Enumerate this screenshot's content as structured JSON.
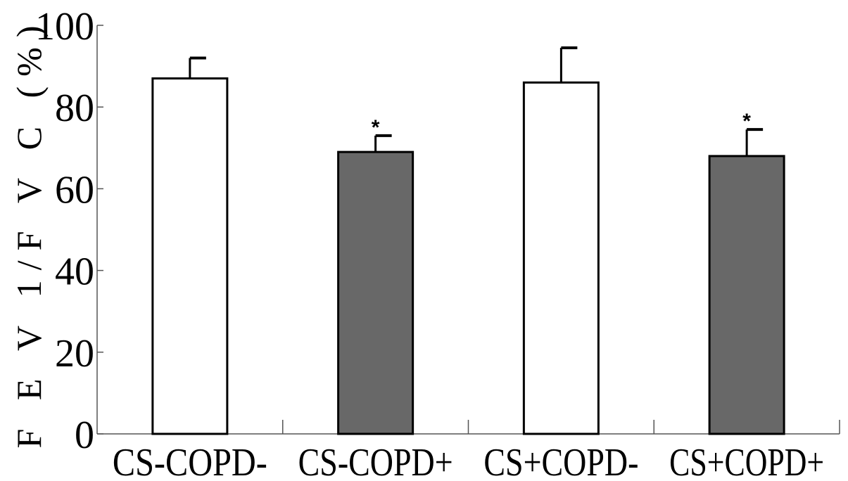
{
  "chart_data": {
    "type": "bar",
    "title": "",
    "xlabel": "",
    "ylabel": "F E V 1/F V C (%)",
    "categories": [
      "CS-COPD-",
      "CS-COPD+",
      "CS+COPD-",
      "CS+COPD+"
    ],
    "values": [
      87,
      69,
      86,
      68
    ],
    "error": [
      5,
      4,
      8.5,
      6.5
    ],
    "annotations": [
      "",
      "*",
      "",
      "*"
    ],
    "bar_colors": [
      "#ffffff",
      "#686868",
      "#ffffff",
      "#686868"
    ],
    "yticks": [
      0,
      20,
      40,
      60,
      80,
      100
    ],
    "ylim": [
      0,
      100
    ],
    "grid": false
  }
}
